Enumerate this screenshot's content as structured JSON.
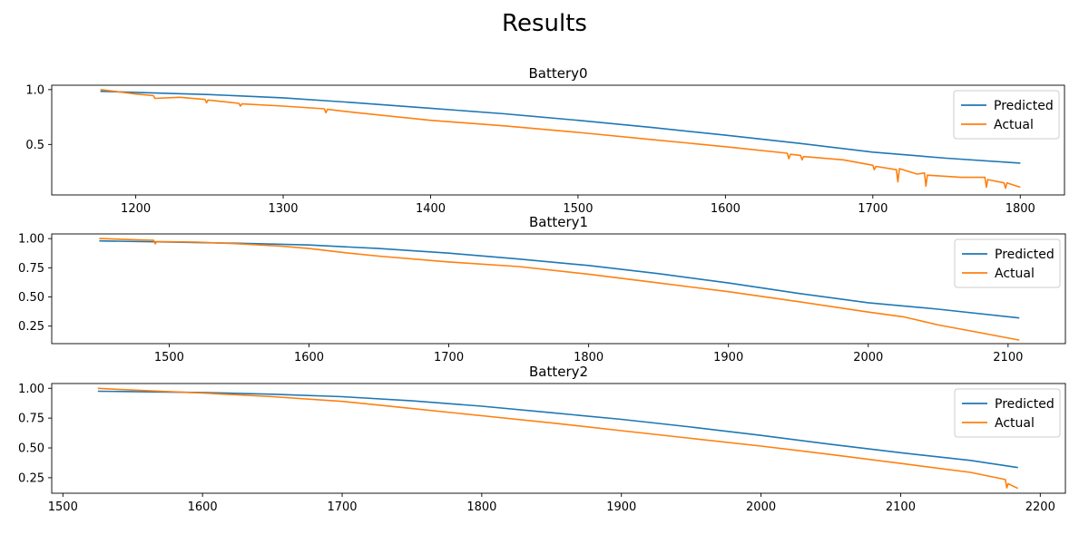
{
  "figure": {
    "title": "Results"
  },
  "colors": {
    "predicted": "#1f77b4",
    "actual": "#ff7f0e"
  },
  "chart_data": [
    {
      "type": "line",
      "title": "Battery0",
      "xlabel": "",
      "ylabel": "",
      "xlim": [
        1143,
        1830
      ],
      "ylim": [
        0.04,
        1.04
      ],
      "xticks": [
        1200,
        1300,
        1400,
        1500,
        1600,
        1700,
        1800
      ],
      "xtick_labels": [
        "1200",
        "1300",
        "1400",
        "1500",
        "1600",
        "1700",
        "1800"
      ],
      "yticks": [
        0.5,
        1.0
      ],
      "ytick_labels": [
        "0.5",
        "1.0"
      ],
      "grid": false,
      "legend": "upper right",
      "legend_entries": [
        "Predicted",
        "Actual"
      ],
      "series": [
        {
          "name": "Predicted",
          "x": [
            1176,
            1200,
            1250,
            1300,
            1350,
            1400,
            1450,
            1500,
            1550,
            1600,
            1650,
            1700,
            1750,
            1800
          ],
          "y": [
            0.985,
            0.975,
            0.955,
            0.925,
            0.88,
            0.83,
            0.78,
            0.72,
            0.655,
            0.585,
            0.51,
            0.43,
            0.375,
            0.33
          ]
        },
        {
          "name": "Actual",
          "x": [
            1176,
            1200,
            1212,
            1213,
            1230,
            1247,
            1248,
            1249,
            1270,
            1271,
            1272,
            1300,
            1328,
            1329,
            1330,
            1350,
            1400,
            1450,
            1500,
            1550,
            1600,
            1642,
            1643,
            1644,
            1651,
            1652,
            1653,
            1680,
            1700,
            1701,
            1702,
            1716,
            1717,
            1718,
            1730,
            1735,
            1736,
            1737,
            1760,
            1776,
            1777,
            1778,
            1789,
            1790,
            1791,
            1800
          ],
          "y": [
            1.0,
            0.96,
            0.945,
            0.92,
            0.93,
            0.91,
            0.88,
            0.905,
            0.875,
            0.85,
            0.87,
            0.85,
            0.825,
            0.79,
            0.82,
            0.79,
            0.72,
            0.67,
            0.61,
            0.545,
            0.48,
            0.42,
            0.37,
            0.41,
            0.4,
            0.36,
            0.39,
            0.36,
            0.31,
            0.27,
            0.3,
            0.27,
            0.16,
            0.28,
            0.23,
            0.24,
            0.12,
            0.22,
            0.2,
            0.2,
            0.11,
            0.18,
            0.15,
            0.1,
            0.15,
            0.11
          ]
        }
      ]
    },
    {
      "type": "line",
      "title": "Battery1",
      "xlabel": "",
      "ylabel": "",
      "xlim": [
        1416,
        2141
      ],
      "ylim": [
        0.1,
        1.04
      ],
      "xticks": [
        1500,
        1600,
        1700,
        1800,
        1900,
        2000,
        2100
      ],
      "xtick_labels": [
        "1500",
        "1600",
        "1700",
        "1800",
        "1900",
        "2000",
        "2100"
      ],
      "yticks": [
        0.25,
        0.5,
        0.75,
        1.0
      ],
      "ytick_labels": [
        "0.25",
        "0.50",
        "0.75",
        "1.00"
      ],
      "grid": false,
      "legend": "upper right",
      "legend_entries": [
        "Predicted",
        "Actual"
      ],
      "series": [
        {
          "name": "Predicted",
          "x": [
            1450,
            1500,
            1550,
            1600,
            1650,
            1700,
            1750,
            1800,
            1850,
            1900,
            1950,
            2000,
            2050,
            2108
          ],
          "y": [
            0.98,
            0.97,
            0.96,
            0.945,
            0.915,
            0.875,
            0.825,
            0.77,
            0.7,
            0.62,
            0.53,
            0.45,
            0.395,
            0.32
          ]
        },
        {
          "name": "Actual",
          "x": [
            1450,
            1475,
            1489,
            1490,
            1491,
            1520,
            1550,
            1580,
            1600,
            1625,
            1650,
            1700,
            1750,
            1800,
            1850,
            1900,
            1950,
            2000,
            2025,
            2050,
            2075,
            2108
          ],
          "y": [
            1.0,
            0.99,
            0.985,
            0.955,
            0.975,
            0.97,
            0.955,
            0.935,
            0.915,
            0.88,
            0.85,
            0.8,
            0.76,
            0.695,
            0.62,
            0.545,
            0.46,
            0.37,
            0.33,
            0.26,
            0.205,
            0.13
          ]
        }
      ]
    },
    {
      "type": "line",
      "title": "Battery2",
      "xlabel": "",
      "ylabel": "",
      "xlim": [
        1492,
        2218
      ],
      "ylim": [
        0.12,
        1.04
      ],
      "xticks": [
        1500,
        1600,
        1700,
        1800,
        1900,
        2000,
        2100,
        2200
      ],
      "xtick_labels": [
        "1500",
        "1600",
        "1700",
        "1800",
        "1900",
        "2000",
        "2100",
        "2200"
      ],
      "yticks": [
        0.25,
        0.5,
        0.75,
        1.0
      ],
      "ytick_labels": [
        "0.25",
        "0.50",
        "0.75",
        "1.00"
      ],
      "grid": false,
      "legend": "upper right",
      "legend_entries": [
        "Predicted",
        "Actual"
      ],
      "series": [
        {
          "name": "Predicted",
          "x": [
            1525,
            1600,
            1650,
            1700,
            1750,
            1800,
            1850,
            1900,
            1950,
            2000,
            2050,
            2100,
            2150,
            2184
          ],
          "y": [
            0.975,
            0.965,
            0.95,
            0.93,
            0.895,
            0.85,
            0.795,
            0.74,
            0.675,
            0.605,
            0.53,
            0.46,
            0.395,
            0.335
          ]
        },
        {
          "name": "Actual",
          "x": [
            1525,
            1550,
            1600,
            1650,
            1700,
            1750,
            1800,
            1850,
            1900,
            1950,
            2000,
            2050,
            2100,
            2150,
            2175,
            2176,
            2177,
            2184
          ],
          "y": [
            1.0,
            0.985,
            0.96,
            0.93,
            0.89,
            0.83,
            0.77,
            0.71,
            0.645,
            0.58,
            0.515,
            0.445,
            0.37,
            0.295,
            0.235,
            0.165,
            0.2,
            0.16
          ]
        }
      ]
    }
  ]
}
